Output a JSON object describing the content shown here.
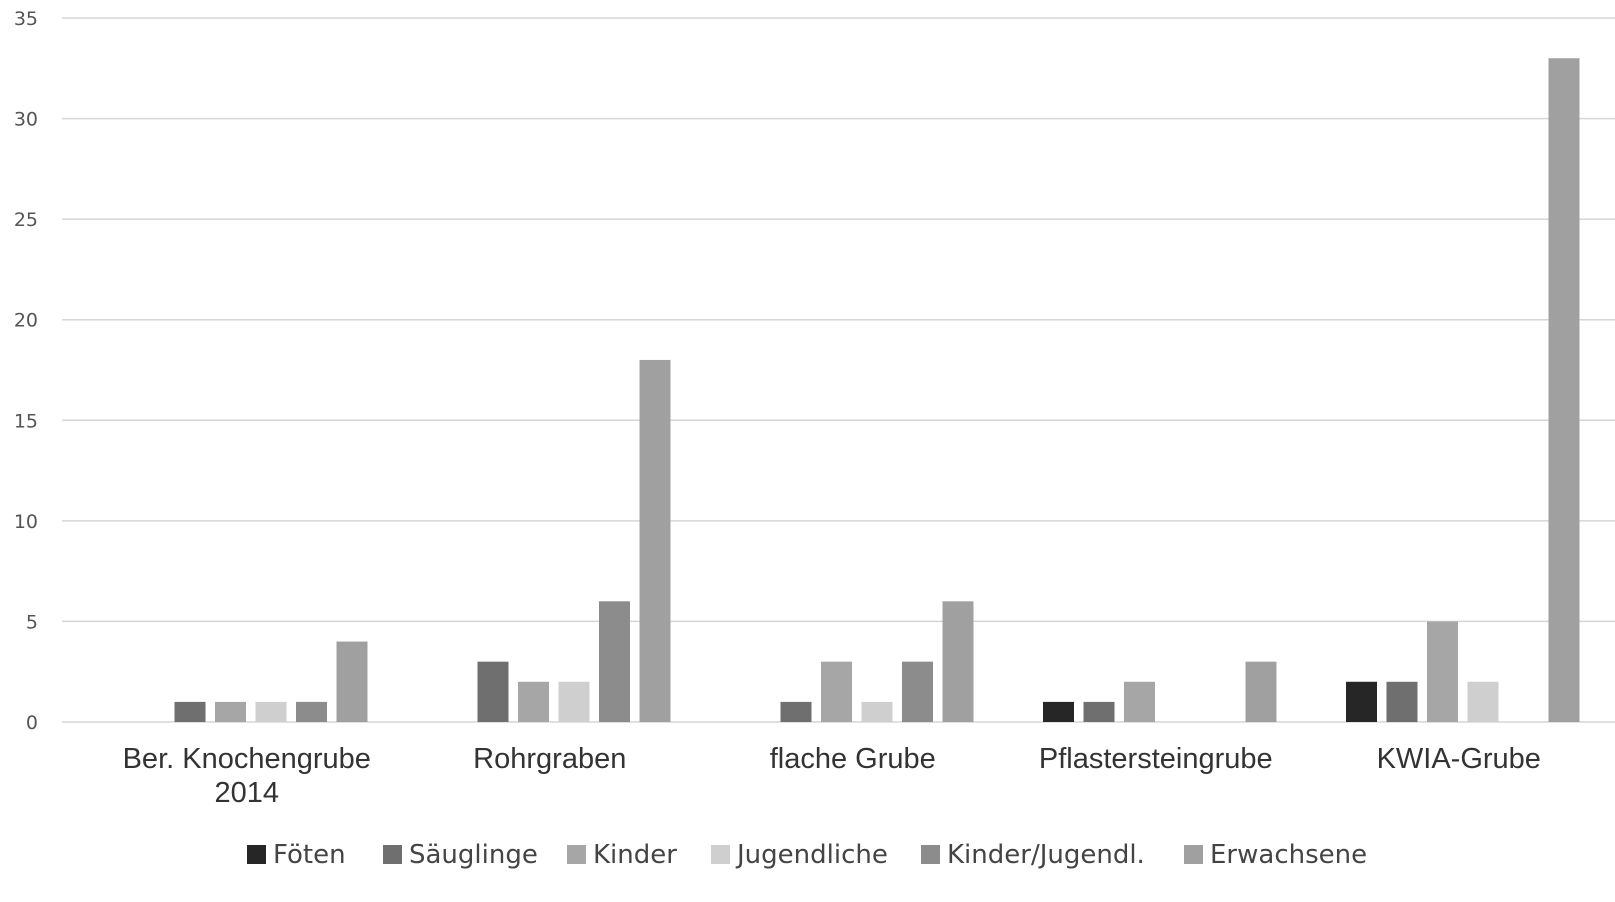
{
  "chart_data": {
    "type": "bar",
    "title": "",
    "xlabel": "",
    "ylabel": "",
    "ylim": [
      0,
      35
    ],
    "yticks": [
      0,
      5,
      10,
      15,
      20,
      25,
      30,
      35
    ],
    "grid": true,
    "legend_position": "bottom",
    "categories": [
      [
        "Ber. Knochengrube",
        "2014"
      ],
      [
        "Rohrgraben"
      ],
      [
        "flache Grube"
      ],
      [
        "Pflastersteingrube"
      ],
      [
        "KWIA-Grube"
      ]
    ],
    "series": [
      {
        "name": "Föten",
        "color": "#262626",
        "values": [
          0,
          0,
          0,
          1,
          2
        ]
      },
      {
        "name": "Säuglinge",
        "color": "#6f6f6f",
        "values": [
          1,
          3,
          1,
          1,
          2
        ]
      },
      {
        "name": "Kinder",
        "color": "#a6a6a6",
        "values": [
          1,
          2,
          3,
          2,
          5
        ]
      },
      {
        "name": "Jugendliche",
        "color": "#cfcfcf",
        "values": [
          1,
          2,
          1,
          0,
          2
        ]
      },
      {
        "name": "Kinder/Jugendl.",
        "color": "#8c8c8c",
        "values": [
          1,
          6,
          3,
          0,
          0
        ]
      },
      {
        "name": "Erwachsene",
        "color": "#a0a0a0",
        "values": [
          4,
          18,
          6,
          3,
          33
        ]
      }
    ]
  }
}
